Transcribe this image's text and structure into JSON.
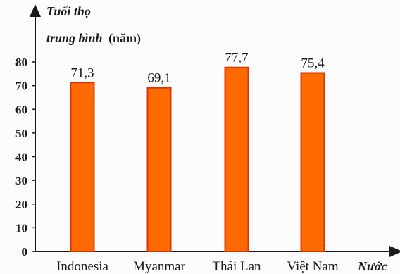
{
  "chart_data": {
    "type": "bar",
    "ylabel_line1": "Tuổi thọ",
    "ylabel_line2_italic": "trung bình",
    "ylabel_unit": "(năm)",
    "xlabel": "Nước",
    "categories": [
      "Indonesia",
      "Myanmar",
      "Thái Lan",
      "Việt Nam"
    ],
    "values": [
      71.3,
      69.1,
      77.7,
      75.4
    ],
    "value_labels": [
      "71,3",
      "69,1",
      "77,7",
      "75,4"
    ],
    "yticks": [
      0,
      10,
      20,
      30,
      40,
      50,
      60,
      70,
      80
    ],
    "ylim": [
      0,
      80
    ],
    "grid": false,
    "bar_color": "#ff6a00",
    "bar_edge_color": "#d8340a"
  }
}
